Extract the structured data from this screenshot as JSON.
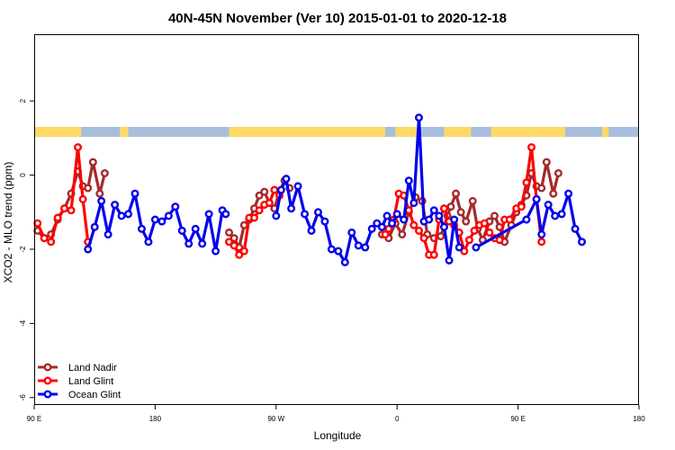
{
  "chart_data": {
    "type": "line",
    "title": "40N-45N November (Ver 10)   2015-01-01 to 2020-12-18",
    "xlabel": "Longitude",
    "ylabel": "XCO2 - MLO trend (ppm)",
    "xlim": [
      90,
      450
    ],
    "ylim": [
      -6.2,
      3.8
    ],
    "x_ticks": [
      {
        "value": 90,
        "label": "90 E"
      },
      {
        "value": 162,
        "label": "180"
      },
      {
        "value": 234,
        "label": "90 W"
      },
      {
        "value": 306,
        "label": "0"
      },
      {
        "value": 378,
        "label": "90 E"
      },
      {
        "value": 450,
        "label": "180"
      }
    ],
    "y_ticks": [
      {
        "value": -6,
        "label": "-6"
      },
      {
        "value": -4,
        "label": "-4"
      },
      {
        "value": -2,
        "label": "-2"
      },
      {
        "value": 0,
        "label": "0"
      },
      {
        "value": 2,
        "label": "2"
      }
    ],
    "surface_band": {
      "y_top": 1.3,
      "y_bottom": 1.03,
      "land_color": "#FFD966",
      "ocean_color": "#A7BFDD",
      "land_ranges": [
        [
          90,
          118
        ],
        [
          141,
          146
        ],
        [
          206,
          299
        ],
        [
          305,
          319
        ],
        [
          334,
          350
        ],
        [
          362,
          406
        ],
        [
          428,
          432
        ]
      ]
    },
    "legend": {
      "position": "bottom-left"
    },
    "series": [
      {
        "name": "Land Nadir",
        "color": "#A52A2A",
        "segments": [
          [
            [
              92,
              -1.5
            ],
            [
              96,
              -1.7
            ],
            [
              100,
              -1.6
            ],
            [
              104,
              -1.2
            ],
            [
              108,
              -0.9
            ],
            [
              112,
              -0.5
            ],
            [
              116,
              0.1
            ],
            [
              119,
              -0.3
            ],
            [
              122,
              -0.35
            ],
            [
              125,
              0.35
            ],
            [
              129,
              -0.5
            ],
            [
              132,
              0.05
            ]
          ],
          [
            [
              206,
              -1.55
            ],
            [
              209,
              -1.7
            ],
            [
              212,
              -1.95
            ],
            [
              215,
              -1.35
            ],
            [
              218,
              -1.2
            ],
            [
              221,
              -0.9
            ],
            [
              224,
              -0.55
            ],
            [
              227,
              -0.45
            ],
            [
              230,
              -0.75
            ],
            [
              233,
              -0.9
            ],
            [
              236,
              -0.45
            ],
            [
              239,
              -0.15
            ],
            [
              242,
              -0.35
            ]
          ],
          [
            [
              297,
              -1.6
            ],
            [
              301,
              -1.7
            ],
            [
              305,
              -1.3
            ],
            [
              309,
              -1.6
            ],
            [
              313,
              -1.0
            ],
            [
              317,
              -0.6
            ],
            [
              321,
              -0.7
            ],
            [
              324,
              -1.6
            ],
            [
              328,
              -1.7
            ],
            [
              332,
              -1.65
            ],
            [
              336,
              -1.1
            ],
            [
              338,
              -0.85
            ],
            [
              341,
              -0.5
            ],
            [
              344,
              -1.0
            ],
            [
              347,
              -1.25
            ],
            [
              351,
              -0.7
            ],
            [
              354,
              -1.45
            ],
            [
              357,
              -1.75
            ],
            [
              361,
              -1.25
            ],
            [
              364,
              -1.1
            ],
            [
              367,
              -1.4
            ],
            [
              370,
              -1.8
            ],
            [
              374,
              -1.35
            ],
            [
              377,
              -1.0
            ],
            [
              380,
              -0.8
            ],
            [
              383,
              -0.55
            ],
            [
              386,
              0.05
            ],
            [
              389,
              -0.3
            ],
            [
              392,
              -0.35
            ],
            [
              395,
              0.35
            ],
            [
              399,
              -0.5
            ],
            [
              402,
              0.05
            ]
          ]
        ]
      },
      {
        "name": "Land Glint",
        "color": "#FF0000",
        "segments": [
          [
            [
              92,
              -1.3
            ],
            [
              96,
              -1.7
            ],
            [
              100,
              -1.8
            ],
            [
              104,
              -1.15
            ],
            [
              108,
              -0.9
            ],
            [
              112,
              -0.95
            ],
            [
              116,
              0.75
            ],
            [
              119,
              -0.65
            ],
            [
              122,
              -1.8
            ]
          ],
          [
            [
              206,
              -1.8
            ],
            [
              209,
              -1.9
            ],
            [
              212,
              -2.15
            ],
            [
              215,
              -2.05
            ],
            [
              218,
              -1.15
            ],
            [
              221,
              -1.15
            ],
            [
              224,
              -0.95
            ],
            [
              227,
              -0.8
            ],
            [
              230,
              -0.75
            ],
            [
              233,
              -0.4
            ],
            [
              236,
              -0.55
            ]
          ],
          [
            [
              299,
              -1.6
            ],
            [
              301,
              -1.45
            ],
            [
              304,
              -1.2
            ],
            [
              307,
              -0.5
            ],
            [
              310,
              -0.55
            ],
            [
              313,
              -0.95
            ],
            [
              316,
              -1.35
            ],
            [
              319,
              -1.5
            ],
            [
              322,
              -1.7
            ],
            [
              325,
              -2.15
            ],
            [
              328,
              -2.15
            ],
            [
              331,
              -1.2
            ],
            [
              334,
              -0.9
            ],
            [
              337,
              -1.25
            ],
            [
              340,
              -1.35
            ],
            [
              343,
              -1.55
            ],
            [
              346,
              -2.05
            ],
            [
              349,
              -1.75
            ],
            [
              352,
              -1.5
            ],
            [
              355,
              -1.35
            ],
            [
              358,
              -1.3
            ],
            [
              361,
              -1.55
            ],
            [
              364,
              -1.7
            ],
            [
              367,
              -1.75
            ],
            [
              370,
              -1.2
            ],
            [
              373,
              -1.2
            ],
            [
              377,
              -0.9
            ],
            [
              380,
              -0.85
            ],
            [
              383,
              -0.2
            ],
            [
              386,
              0.75
            ],
            [
              389,
              -0.65
            ],
            [
              392,
              -1.8
            ]
          ]
        ]
      },
      {
        "name": "Ocean Glint",
        "color": "#0000EE",
        "segments": [
          [
            [
              122,
              -2.0
            ],
            [
              126,
              -1.4
            ],
            [
              130,
              -0.7
            ],
            [
              134,
              -1.6
            ],
            [
              138,
              -0.8
            ],
            [
              142,
              -1.1
            ],
            [
              146,
              -1.05
            ],
            [
              150,
              -0.5
            ],
            [
              154,
              -1.45
            ],
            [
              158,
              -1.8
            ],
            [
              162,
              -1.2
            ],
            [
              166,
              -1.25
            ],
            [
              170,
              -1.1
            ],
            [
              174,
              -0.85
            ],
            [
              178,
              -1.5
            ],
            [
              182,
              -1.85
            ],
            [
              186,
              -1.45
            ],
            [
              190,
              -1.85
            ],
            [
              194,
              -1.05
            ],
            [
              198,
              -2.05
            ],
            [
              202,
              -0.95
            ],
            [
              204,
              -1.05
            ]
          ],
          [
            [
              234,
              -1.1
            ],
            [
              237,
              -0.4
            ],
            [
              240,
              -0.1
            ],
            [
              243,
              -0.9
            ],
            [
              247,
              -0.3
            ],
            [
              251,
              -1.05
            ],
            [
              255,
              -1.5
            ],
            [
              259,
              -1.0
            ],
            [
              263,
              -1.25
            ],
            [
              267,
              -2.0
            ],
            [
              271,
              -2.05
            ],
            [
              275,
              -2.35
            ],
            [
              279,
              -1.55
            ],
            [
              283,
              -1.9
            ],
            [
              287,
              -1.95
            ],
            [
              291,
              -1.45
            ],
            [
              294,
              -1.3
            ],
            [
              297,
              -1.4
            ],
            [
              300,
              -1.1
            ],
            [
              303,
              -1.3
            ],
            [
              306,
              -1.05
            ],
            [
              310,
              -1.2
            ],
            [
              313,
              -0.15
            ],
            [
              316,
              -0.75
            ],
            [
              319,
              1.55
            ],
            [
              322,
              -1.25
            ],
            [
              325,
              -1.2
            ],
            [
              328,
              -0.95
            ],
            [
              331,
              -1.1
            ],
            [
              334,
              -1.4
            ],
            [
              337,
              -2.3
            ],
            [
              340,
              -1.2
            ],
            [
              343,
              -1.95
            ]
          ],
          [
            [
              353,
              -1.95
            ],
            [
              383,
              -1.2
            ],
            [
              389,
              -0.65
            ],
            [
              392,
              -1.6
            ],
            [
              396,
              -0.8
            ],
            [
              400,
              -1.1
            ],
            [
              404,
              -1.05
            ],
            [
              408,
              -0.5
            ],
            [
              412,
              -1.45
            ],
            [
              416,
              -1.8
            ]
          ]
        ]
      }
    ]
  }
}
